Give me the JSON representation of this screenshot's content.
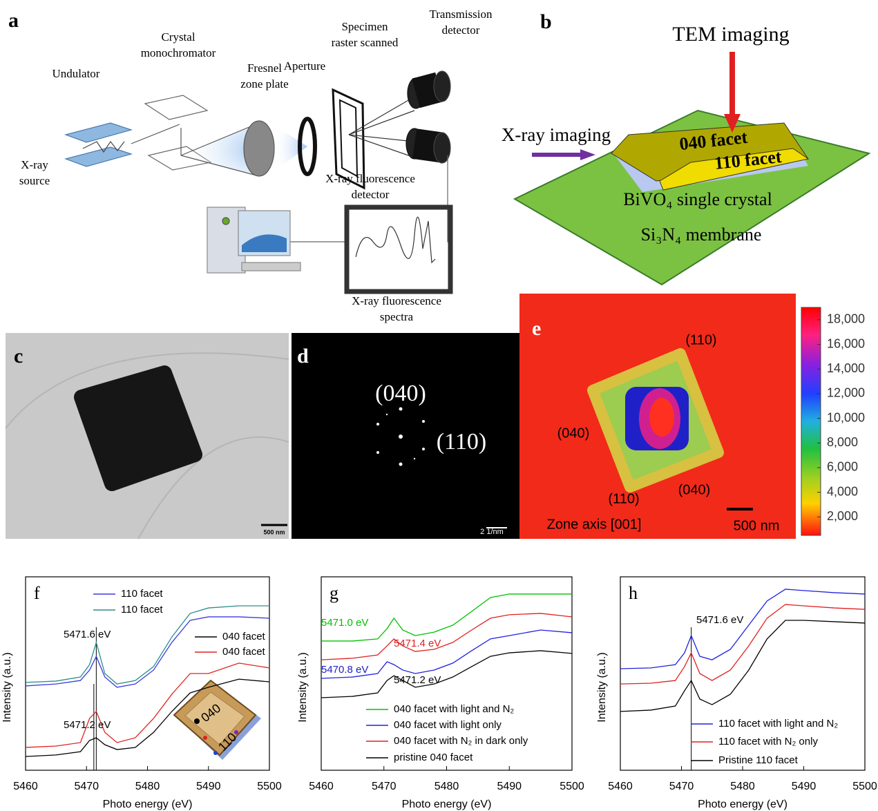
{
  "panel_a": {
    "letter": "a",
    "labels": [
      [
        "Undulator"
      ],
      [
        "X-ray",
        "source"
      ],
      [
        "Crystal",
        "monochromator"
      ],
      [
        "Fresnel",
        "zone plate"
      ],
      [
        "Aperture"
      ],
      [
        "Specimen",
        "raster scanned"
      ],
      [
        "Transmission",
        "detector"
      ],
      [
        "X-ray fluorescence",
        "detector"
      ],
      [
        "X-ray fluorescence",
        "spectra"
      ]
    ]
  },
  "panel_b": {
    "letter": "b",
    "labels": [
      "TEM imaging",
      "X-ray imaging",
      "040 facet",
      "110 facet",
      "BiVO₄ single crystal",
      "Si₃N₄ membrane"
    ]
  },
  "panel_c": {
    "letter": "c",
    "scale_bar": "500 nm"
  },
  "panel_d": {
    "letter": "d",
    "labels": [
      "(040)",
      "(110)"
    ],
    "scale_bar": "2 1/nm"
  },
  "panel_e": {
    "letter": "e",
    "labels": [
      "(110)",
      "(040)",
      "(040)",
      "(110)",
      "Zone axis [001]"
    ],
    "scale_bar": "500 nm",
    "colorbar": {
      "range": [
        500,
        19000
      ],
      "ticks": [
        {
          "value": 18000,
          "label": "18,000"
        },
        {
          "value": 16000,
          "label": "16,000"
        },
        {
          "value": 14000,
          "label": "14,000"
        },
        {
          "value": 12000,
          "label": "12,000"
        },
        {
          "value": 10000,
          "label": "10,000"
        },
        {
          "value": 8000,
          "label": "8,000"
        },
        {
          "value": 6000,
          "label": "6,000"
        },
        {
          "value": 4000,
          "label": "4,000"
        },
        {
          "value": 2000,
          "label": "2,000"
        }
      ]
    }
  },
  "chart_data": [
    {
      "type": "line",
      "title": "f",
      "x_label": "Photo energy (eV)",
      "y_label": "Intensity (a.u.)",
      "x": [
        5460,
        5465,
        5469,
        5470.5,
        5471.6,
        5473,
        5475,
        5478,
        5481,
        5484,
        5487,
        5490,
        5495,
        5500
      ],
      "xlim": [
        5460,
        5500
      ],
      "xticks": [
        5460,
        5470,
        5480,
        5490,
        5500
      ],
      "ylim": [
        0,
        10
      ],
      "series": [
        {
          "name": "110 facet",
          "color": "#3a3ae0",
          "values": [
            4.36,
            4.46,
            4.64,
            5.18,
            5.89,
            4.82,
            4.29,
            4.46,
            5.18,
            6.61,
            7.75,
            7.93,
            7.93,
            7.86
          ]
        },
        {
          "name": "110 facet",
          "color": "#2a8c8c",
          "values": [
            4.54,
            4.61,
            4.82,
            5.46,
            6.61,
            5.0,
            4.46,
            4.64,
            5.36,
            6.89,
            8.11,
            8.39,
            8.5,
            8.5
          ]
        },
        {
          "name": "040 facet",
          "color": "#000000",
          "values": [
            0.71,
            0.79,
            0.96,
            1.54,
            1.68,
            1.32,
            1.07,
            1.18,
            1.96,
            3.04,
            4.0,
            4.29,
            4.71,
            4.57
          ]
        },
        {
          "name": "040 facet",
          "color": "#e02020",
          "values": [
            1.18,
            1.25,
            1.43,
            2.68,
            3.04,
            1.96,
            1.43,
            1.68,
            2.68,
            3.93,
            5.0,
            5.0,
            5.54,
            5.29
          ]
        }
      ],
      "vlines": [
        5471.2,
        5471.6
      ],
      "annotations": [
        {
          "text": "5471.6 eV",
          "color": "#000000"
        },
        {
          "text": "5471.2 eV",
          "color": "#000000"
        }
      ],
      "inset_labels": [
        "040",
        "110"
      ]
    },
    {
      "type": "line",
      "title": "g",
      "x_label": "Photo energy (eV)",
      "y_label": "Intensity (a.u.)",
      "x": [
        5460,
        5465,
        5469,
        5470.5,
        5471.6,
        5473,
        5475,
        5478,
        5481,
        5484,
        5487,
        5490,
        5495,
        5500
      ],
      "xlim": [
        5460,
        5500
      ],
      "xticks": [
        5460,
        5470,
        5480,
        5490,
        5500
      ],
      "ylim": [
        0,
        10
      ],
      "series": [
        {
          "name": "040 facet with light and N₂",
          "color": "#00c000",
          "values": [
            6.68,
            6.68,
            6.79,
            7.32,
            7.86,
            7.25,
            6.96,
            7.14,
            7.5,
            8.21,
            8.93,
            9.11,
            9.11,
            9.11
          ]
        },
        {
          "name": "040 facet with light only",
          "color": "#2020e0",
          "values": [
            4.75,
            4.82,
            5.0,
            5.61,
            5.46,
            5.18,
            5.0,
            5.18,
            5.54,
            6.18,
            6.79,
            6.96,
            7.25,
            7.11
          ]
        },
        {
          "name": "040 facet with N₂ in dark only",
          "color": "#e02020",
          "values": [
            5.71,
            5.79,
            5.96,
            6.43,
            6.79,
            6.43,
            6.14,
            6.25,
            6.61,
            7.25,
            7.86,
            8.04,
            8.11,
            7.93
          ]
        },
        {
          "name": "pristine 040 facet",
          "color": "#000000",
          "values": [
            3.75,
            3.82,
            4.0,
            4.64,
            4.89,
            4.64,
            4.29,
            4.46,
            4.82,
            5.36,
            5.89,
            6.07,
            6.18,
            6.04
          ]
        }
      ],
      "vlines": [],
      "annotations": [
        {
          "text": "5471.0 eV",
          "color": "#00c000"
        },
        {
          "text": "5471.4 eV",
          "color": "#e02020"
        },
        {
          "text": "5470.8 eV",
          "color": "#2020c0"
        },
        {
          "text": "5471.2 eV",
          "color": "#000000"
        }
      ]
    },
    {
      "type": "line",
      "title": "h",
      "x_label": "Photo energy (eV)",
      "y_label": "Intensity (a.u.)",
      "x": [
        5460,
        5465,
        5469,
        5470.5,
        5471.6,
        5473,
        5475,
        5478,
        5481,
        5484,
        5487,
        5490,
        5495,
        5500
      ],
      "xlim": [
        5460,
        5500
      ],
      "xticks": [
        5460,
        5470,
        5480,
        5490,
        5500
      ],
      "ylim": [
        0,
        10
      ],
      "series": [
        {
          "name": "110 facet with light and N₂",
          "color": "#2020e0",
          "values": [
            5.25,
            5.29,
            5.46,
            6.07,
            6.96,
            5.89,
            5.71,
            6.25,
            7.5,
            8.75,
            9.36,
            9.29,
            9.18,
            9.11
          ]
        },
        {
          "name": "110 facet with N₂ only",
          "color": "#e02020",
          "values": [
            4.46,
            4.5,
            4.64,
            5.36,
            6.07,
            5.0,
            4.64,
            5.18,
            6.43,
            7.86,
            8.57,
            8.5,
            8.39,
            8.32
          ]
        },
        {
          "name": "Pristine 110 facet",
          "color": "#000000",
          "values": [
            3.04,
            3.11,
            3.32,
            4.11,
            4.64,
            3.68,
            3.39,
            3.93,
            5.18,
            6.79,
            7.75,
            7.75,
            7.68,
            7.61
          ]
        }
      ],
      "vlines": [
        5471.6
      ],
      "annotations": [
        {
          "text": "5471.6 eV",
          "color": "#000000"
        }
      ]
    }
  ]
}
